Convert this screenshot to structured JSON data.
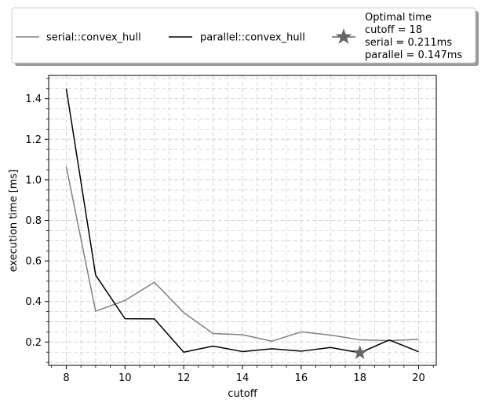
{
  "chart_data": {
    "type": "line",
    "xlabel": "cutoff",
    "ylabel": "execution time [ms]",
    "xlim": [
      7.4,
      20.6
    ],
    "ylim": [
      0.085,
      1.515
    ],
    "x": [
      8,
      9,
      10,
      11,
      12,
      13,
      14,
      15,
      16,
      17,
      18,
      19,
      20
    ],
    "x_ticks": [
      8,
      10,
      12,
      14,
      16,
      18,
      20
    ],
    "x_tick_labels": [
      "8",
      "10",
      "12",
      "14",
      "16",
      "18",
      "20"
    ],
    "y_ticks": [
      0.2,
      0.4,
      0.6,
      0.8,
      1.0,
      1.2,
      1.4
    ],
    "y_tick_labels": [
      "0.2",
      "0.4",
      "0.6",
      "0.8",
      "1.0",
      "1.2",
      "1.4"
    ],
    "grid": true,
    "grid_minor": true,
    "legend_position": "top, above plot",
    "series": [
      {
        "name": "serial::convex_hull",
        "color": "#808080",
        "values": [
          1.065,
          0.352,
          0.405,
          0.495,
          0.345,
          0.242,
          0.236,
          0.204,
          0.25,
          0.234,
          0.211,
          0.207,
          0.213
        ]
      },
      {
        "name": "parallel::convex_hull",
        "color": "#000000",
        "values": [
          1.45,
          0.53,
          0.315,
          0.314,
          0.15,
          0.18,
          0.153,
          0.167,
          0.155,
          0.173,
          0.147,
          0.21,
          0.152
        ]
      }
    ],
    "optimum_marker": {
      "x": 18,
      "y": 0.147,
      "color": "#666666",
      "legend_lines": [
        "Optimal time",
        "cutoff = 18",
        "serial = 0.211ms",
        "parallel = 0.147ms"
      ]
    }
  }
}
